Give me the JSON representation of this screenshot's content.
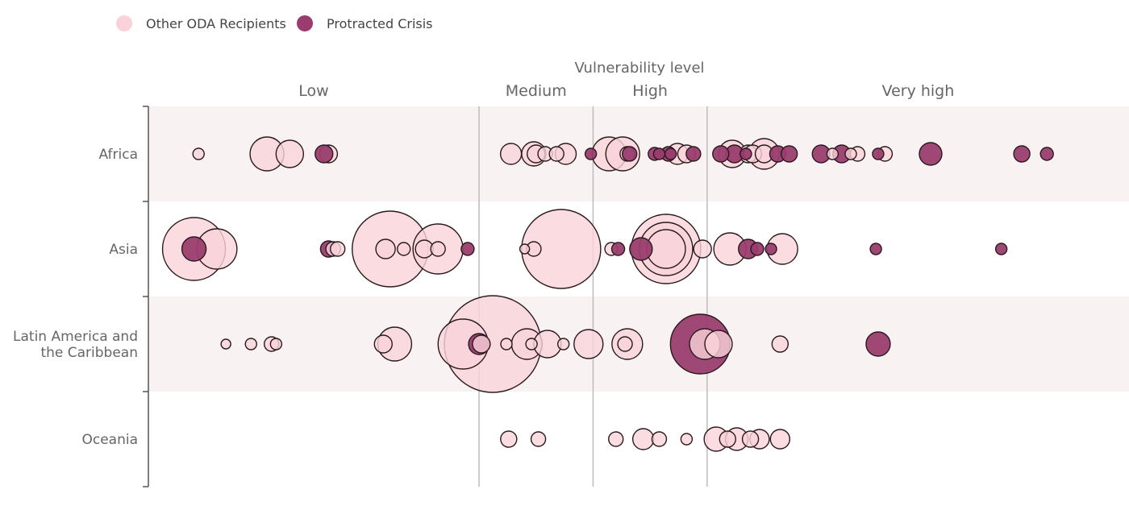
{
  "legend": [
    {
      "label": "Other ODA Recipients",
      "color": "#f9d3d9"
    },
    {
      "label": "Protracted Crisis",
      "color": "#9a3d6e"
    }
  ],
  "chart_data": {
    "type": "scatter",
    "x_title": "Vulnerability level",
    "x_categories": [
      "Low",
      "Medium",
      "High",
      "Very high"
    ],
    "y_categories": [
      "Africa",
      "Asia",
      "Latin America and the Caribbean",
      "Oceania"
    ],
    "y_labels_display": [
      [
        "Africa"
      ],
      [
        "Asia"
      ],
      [
        "Latin America and",
        "the Caribbean"
      ],
      [
        "Oceania"
      ]
    ],
    "x_range": [
      0.6,
      4.9
    ],
    "category_bounds": [
      0.6,
      2.05,
      2.55,
      3.05,
      4.9
    ],
    "size_unit": "relative",
    "colors": {
      "other": "#f9d3d9",
      "protracted": "#9a3d6e",
      "stroke": "#2a1a1f",
      "band": "#f8f3f2",
      "divider": "#bdbdbd"
    },
    "series": [
      {
        "name": "Other ODA Recipients",
        "key": "other",
        "points": [
          {
            "region": "Africa",
            "x": 0.82,
            "size": 7
          },
          {
            "region": "Africa",
            "x": 1.12,
            "size": 21
          },
          {
            "region": "Africa",
            "x": 1.22,
            "size": 17
          },
          {
            "region": "Africa",
            "x": 1.39,
            "size": 11
          },
          {
            "region": "Africa",
            "x": 2.19,
            "size": 13
          },
          {
            "region": "Africa",
            "x": 2.29,
            "size": 15
          },
          {
            "region": "Africa",
            "x": 2.3,
            "size": 11
          },
          {
            "region": "Africa",
            "x": 2.34,
            "size": 9
          },
          {
            "region": "Africa",
            "x": 2.39,
            "size": 9
          },
          {
            "region": "Africa",
            "x": 2.43,
            "size": 13
          },
          {
            "region": "Africa",
            "x": 2.62,
            "size": 21
          },
          {
            "region": "Africa",
            "x": 2.68,
            "size": 21
          },
          {
            "region": "Africa",
            "x": 2.7,
            "size": 9
          },
          {
            "region": "Africa",
            "x": 2.92,
            "size": 13
          },
          {
            "region": "Africa",
            "x": 2.96,
            "size": 11
          },
          {
            "region": "Africa",
            "x": 3.16,
            "size": 17
          },
          {
            "region": "Africa",
            "x": 3.23,
            "size": 11
          },
          {
            "region": "Africa",
            "x": 3.25,
            "size": 11
          },
          {
            "region": "Africa",
            "x": 3.3,
            "size": 19
          },
          {
            "region": "Africa",
            "x": 3.3,
            "size": 11
          },
          {
            "region": "Africa",
            "x": 3.6,
            "size": 7
          },
          {
            "region": "Africa",
            "x": 3.68,
            "size": 7
          },
          {
            "region": "Africa",
            "x": 3.71,
            "size": 9
          },
          {
            "region": "Africa",
            "x": 3.83,
            "size": 9
          },
          {
            "region": "Asia",
            "x": 0.8,
            "size": 39
          },
          {
            "region": "Asia",
            "x": 0.9,
            "size": 25
          },
          {
            "region": "Asia",
            "x": 1.41,
            "size": 9
          },
          {
            "region": "Asia",
            "x": 1.43,
            "size": 9
          },
          {
            "region": "Asia",
            "x": 1.64,
            "size": 12
          },
          {
            "region": "Asia",
            "x": 1.72,
            "size": 8
          },
          {
            "region": "Asia",
            "x": 1.66,
            "size": 47
          },
          {
            "region": "Asia",
            "x": 1.81,
            "size": 11
          },
          {
            "region": "Asia",
            "x": 1.87,
            "size": 9
          },
          {
            "region": "Asia",
            "x": 1.87,
            "size": 31
          },
          {
            "region": "Asia",
            "x": 2.29,
            "size": 9
          },
          {
            "region": "Asia",
            "x": 2.25,
            "size": 6
          },
          {
            "region": "Asia",
            "x": 2.41,
            "size": 49
          },
          {
            "region": "Asia",
            "x": 2.63,
            "size": 8
          },
          {
            "region": "Asia",
            "x": 2.87,
            "size": 43
          },
          {
            "region": "Asia",
            "x": 2.87,
            "size": 33
          },
          {
            "region": "Asia",
            "x": 2.87,
            "size": 24
          },
          {
            "region": "Asia",
            "x": 3.03,
            "size": 11
          },
          {
            "region": "Asia",
            "x": 3.15,
            "size": 20
          },
          {
            "region": "Asia",
            "x": 3.38,
            "size": 19
          },
          {
            "region": "Latin America and the Caribbean",
            "x": 0.94,
            "size": 6
          },
          {
            "region": "Latin America and the Caribbean",
            "x": 1.05,
            "size": 7
          },
          {
            "region": "Latin America and the Caribbean",
            "x": 1.14,
            "size": 9
          },
          {
            "region": "Latin America and the Caribbean",
            "x": 1.16,
            "size": 7
          },
          {
            "region": "Latin America and the Caribbean",
            "x": 1.63,
            "size": 11
          },
          {
            "region": "Latin America and the Caribbean",
            "x": 1.68,
            "size": 21
          },
          {
            "region": "Latin America and the Caribbean",
            "x": 1.98,
            "size": 31
          },
          {
            "region": "Latin America and the Caribbean",
            "x": 2.11,
            "size": 60
          },
          {
            "region": "Latin America and the Caribbean",
            "x": 2.06,
            "size": 11
          },
          {
            "region": "Latin America and the Caribbean",
            "x": 2.17,
            "size": 7
          },
          {
            "region": "Latin America and the Caribbean",
            "x": 2.28,
            "size": 7
          },
          {
            "region": "Latin America and the Caribbean",
            "x": 2.26,
            "size": 19
          },
          {
            "region": "Latin America and the Caribbean",
            "x": 2.35,
            "size": 17
          },
          {
            "region": "Latin America and the Caribbean",
            "x": 2.42,
            "size": 7
          },
          {
            "region": "Latin America and the Caribbean",
            "x": 2.53,
            "size": 18
          },
          {
            "region": "Latin America and the Caribbean",
            "x": 2.69,
            "size": 9
          },
          {
            "region": "Latin America and the Caribbean",
            "x": 2.7,
            "size": 19
          },
          {
            "region": "Latin America and the Caribbean",
            "x": 3.04,
            "size": 19
          },
          {
            "region": "Latin America and the Caribbean",
            "x": 3.1,
            "size": 17
          },
          {
            "region": "Latin America and the Caribbean",
            "x": 3.37,
            "size": 10
          },
          {
            "region": "Oceania",
            "x": 2.18,
            "size": 10
          },
          {
            "region": "Oceania",
            "x": 2.31,
            "size": 9
          },
          {
            "region": "Oceania",
            "x": 2.65,
            "size": 9
          },
          {
            "region": "Oceania",
            "x": 2.77,
            "size": 13
          },
          {
            "region": "Oceania",
            "x": 2.84,
            "size": 9
          },
          {
            "region": "Oceania",
            "x": 2.96,
            "size": 7
          },
          {
            "region": "Oceania",
            "x": 3.09,
            "size": 15
          },
          {
            "region": "Oceania",
            "x": 3.14,
            "size": 10
          },
          {
            "region": "Oceania",
            "x": 3.18,
            "size": 14
          },
          {
            "region": "Oceania",
            "x": 3.24,
            "size": 10
          },
          {
            "region": "Oceania",
            "x": 3.28,
            "size": 12
          },
          {
            "region": "Oceania",
            "x": 3.37,
            "size": 12
          }
        ]
      },
      {
        "name": "Protracted Crisis",
        "key": "protracted",
        "points": [
          {
            "region": "Africa",
            "x": 1.37,
            "size": 11
          },
          {
            "region": "Africa",
            "x": 2.54,
            "size": 7
          },
          {
            "region": "Africa",
            "x": 2.71,
            "size": 9
          },
          {
            "region": "Africa",
            "x": 2.82,
            "size": 8
          },
          {
            "region": "Africa",
            "x": 2.84,
            "size": 7
          },
          {
            "region": "Africa",
            "x": 2.88,
            "size": 9
          },
          {
            "region": "Africa",
            "x": 2.89,
            "size": 7
          },
          {
            "region": "Africa",
            "x": 2.99,
            "size": 9
          },
          {
            "region": "Africa",
            "x": 3.11,
            "size": 10
          },
          {
            "region": "Africa",
            "x": 3.17,
            "size": 11
          },
          {
            "region": "Africa",
            "x": 3.22,
            "size": 7
          },
          {
            "region": "Africa",
            "x": 3.36,
            "size": 10
          },
          {
            "region": "Africa",
            "x": 3.41,
            "size": 10
          },
          {
            "region": "Africa",
            "x": 3.55,
            "size": 11
          },
          {
            "region": "Africa",
            "x": 3.64,
            "size": 11
          },
          {
            "region": "Africa",
            "x": 3.8,
            "size": 7
          },
          {
            "region": "Africa",
            "x": 4.03,
            "size": 14
          },
          {
            "region": "Africa",
            "x": 4.43,
            "size": 10
          },
          {
            "region": "Africa",
            "x": 4.54,
            "size": 8
          },
          {
            "region": "Asia",
            "x": 0.8,
            "size": 15
          },
          {
            "region": "Asia",
            "x": 1.39,
            "size": 10
          },
          {
            "region": "Asia",
            "x": 2.0,
            "size": 8
          },
          {
            "region": "Asia",
            "x": 2.66,
            "size": 8
          },
          {
            "region": "Asia",
            "x": 2.76,
            "size": 14
          },
          {
            "region": "Asia",
            "x": 3.23,
            "size": 12
          },
          {
            "region": "Asia",
            "x": 3.27,
            "size": 8
          },
          {
            "region": "Asia",
            "x": 3.33,
            "size": 7
          },
          {
            "region": "Asia",
            "x": 3.79,
            "size": 7
          },
          {
            "region": "Asia",
            "x": 4.34,
            "size": 7
          },
          {
            "region": "Latin America and the Caribbean",
            "x": 2.05,
            "size": 13
          },
          {
            "region": "Latin America and the Caribbean",
            "x": 3.02,
            "size": 37
          },
          {
            "region": "Latin America and the Caribbean",
            "x": 3.8,
            "size": 15
          }
        ]
      }
    ]
  }
}
